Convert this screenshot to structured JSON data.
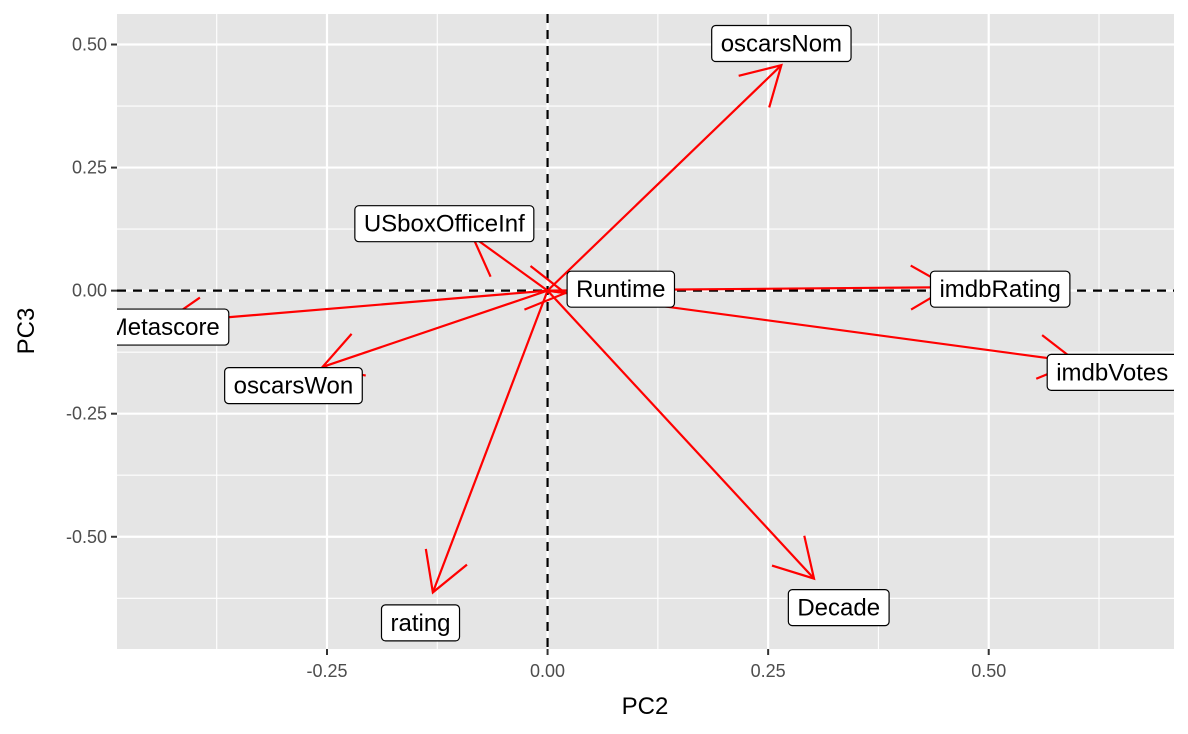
{
  "chart_data": {
    "type": "scatter",
    "xlabel": "PC2",
    "ylabel": "PC3",
    "xlim": [
      -0.488,
      0.71
    ],
    "ylim": [
      -0.728,
      0.562
    ],
    "x_ticks": [
      -0.25,
      0,
      0.25,
      0.5
    ],
    "x_tick_labels": [
      "-0.25",
      "0.00",
      "0.25",
      "0.50"
    ],
    "y_ticks": [
      -0.5,
      -0.25,
      0,
      0.25,
      0.5
    ],
    "y_tick_labels": [
      "-0.50",
      "-0.25",
      "0.00",
      "0.25",
      "0.50"
    ],
    "grid": true,
    "reference_lines": {
      "x": 0,
      "y": 0
    },
    "arrow_color": "#ff0000",
    "vectors": [
      {
        "label": "oscarsNom",
        "x": 0.265,
        "y": 0.458,
        "label_x": 0.265,
        "label_y": 0.502
      },
      {
        "label": "USboxOfficeInf",
        "x": -0.085,
        "y": 0.11,
        "label_x": -0.117,
        "label_y": 0.136
      },
      {
        "label": "Runtime",
        "x": 0.02,
        "y": -0.005,
        "label_x": 0.083,
        "label_y": 0.003
      },
      {
        "label": "imdbRating",
        "x": 0.455,
        "y": 0.007,
        "label_x": 0.513,
        "label_y": 0.003
      },
      {
        "label": "Metascore",
        "x": -0.435,
        "y": -0.065,
        "label_x": -0.435,
        "label_y": -0.074
      },
      {
        "label": "oscarsWon",
        "x": -0.255,
        "y": -0.155,
        "label_x": -0.288,
        "label_y": -0.193
      },
      {
        "label": "imdbVotes",
        "x": 0.6,
        "y": -0.145,
        "label_x": 0.64,
        "label_y": -0.166
      },
      {
        "label": "rating",
        "x": -0.13,
        "y": -0.613,
        "label_x": -0.144,
        "label_y": -0.675
      },
      {
        "label": "Decade",
        "x": 0.302,
        "y": -0.585,
        "label_x": 0.33,
        "label_y": -0.644
      }
    ]
  }
}
